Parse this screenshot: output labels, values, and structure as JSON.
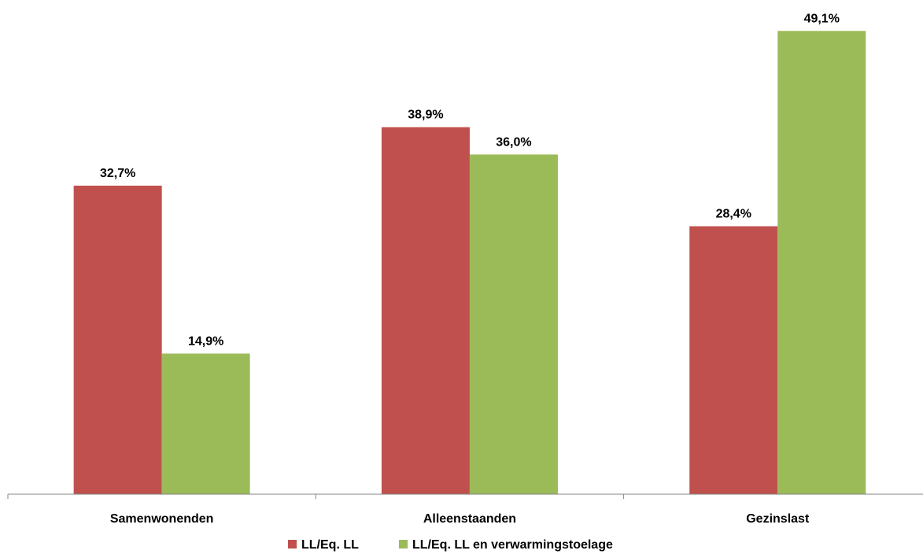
{
  "chart_data": {
    "type": "bar",
    "categories": [
      "Samenwonenden",
      "Alleenstaanden",
      "Gezinslast"
    ],
    "series": [
      {
        "name": "LL/Eq. LL",
        "values": [
          32.7,
          38.9,
          28.4
        ],
        "labels": [
          "32,7%",
          "38,9%",
          "28,4%"
        ],
        "color": "#c0504d"
      },
      {
        "name": "LL/Eq. LL en verwarmingstoelage",
        "values": [
          14.9,
          36.0,
          49.1
        ],
        "labels": [
          "14,9%",
          "36,0%",
          "49,1%"
        ],
        "color": "#9bbb59"
      }
    ],
    "ylim": [
      0,
      50
    ],
    "grid": false,
    "legend": "bottom"
  }
}
